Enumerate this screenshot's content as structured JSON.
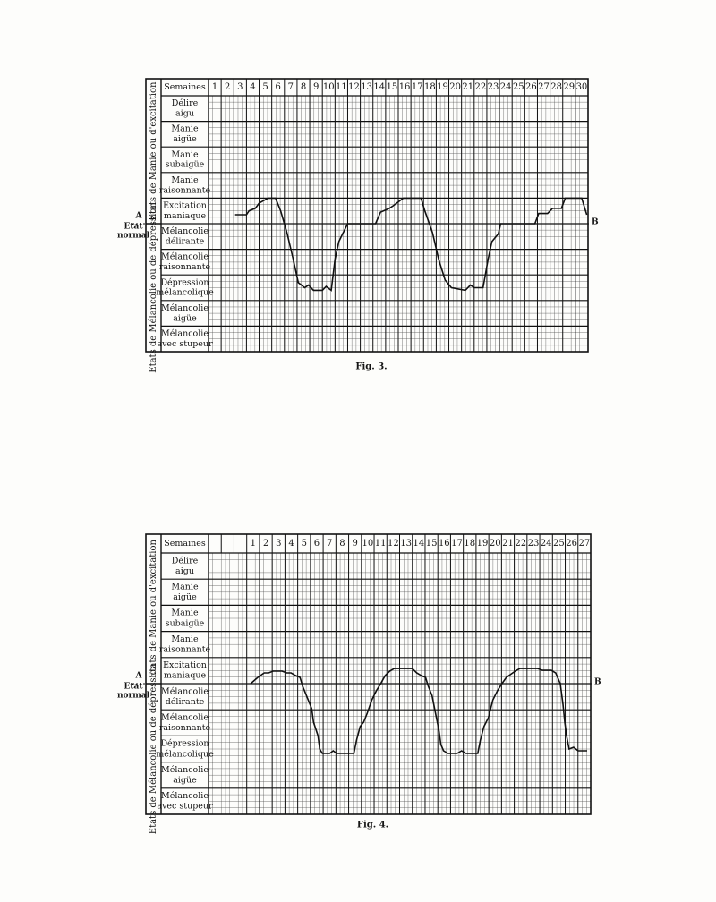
{
  "chart_data": [
    {
      "type": "line",
      "header_label": "Semaines",
      "weeks": [
        1,
        2,
        3,
        4,
        5,
        6,
        7,
        8,
        9,
        10,
        11,
        12,
        13,
        14,
        15,
        16,
        17,
        18,
        19,
        20,
        21,
        22,
        23,
        24,
        25,
        26,
        27,
        28,
        29,
        30
      ],
      "rows": [
        [
          "Délire",
          "aigu"
        ],
        [
          "Manie",
          "aigüe"
        ],
        [
          "Manie",
          "subaigüe"
        ],
        [
          "Manie",
          "raisonnante"
        ],
        [
          "Excitation",
          "maniaque"
        ],
        [
          "Mélancolie",
          "délirante"
        ],
        [
          "Mélancolie",
          "raisonnante"
        ],
        [
          "Dépression",
          "mélancolique"
        ],
        [
          "Mélancolie",
          "aigüe"
        ],
        [
          "Mélancolie",
          "avec stupeur"
        ]
      ],
      "group_labels": [
        "Etats de Manie ou d'excitation",
        "Etats de Mélancolie ou de dépression"
      ],
      "start_marker": "A",
      "baseline_label": [
        "Etat",
        "normal"
      ],
      "end_marker": "B",
      "caption": "Fig. 3.",
      "xlim": [
        0,
        30
      ],
      "ylim": [
        -5,
        5
      ],
      "color": "#111111",
      "x": [
        2.1,
        3.0,
        3.2,
        3.7,
        4.0,
        4.7,
        5.3,
        5.7,
        6.2,
        6.7,
        7.1,
        7.6,
        7.9,
        8.3,
        9.0,
        9.3,
        9.7,
        10.0,
        10.3,
        10.6,
        11.0,
        13.2,
        13.6,
        14.3,
        14.6,
        15.4,
        16.8,
        17.1,
        17.7,
        18.2,
        18.7,
        19.2,
        20.3,
        20.7,
        21.0,
        21.7,
        22.1,
        22.4,
        22.9,
        23.1,
        25.8,
        26.1,
        26.8,
        27.2,
        27.9,
        28.2,
        29.5,
        29.9
      ],
      "values": [
        0.35,
        0.35,
        0.5,
        0.6,
        0.8,
        1.0,
        1.0,
        0.5,
        -0.35,
        -1.4,
        -2.3,
        -2.5,
        -2.4,
        -2.6,
        -2.6,
        -2.45,
        -2.6,
        -1.4,
        -0.7,
        -0.4,
        0,
        0,
        0.45,
        0.6,
        0.7,
        1.0,
        1.0,
        0.5,
        -0.35,
        -1.4,
        -2.2,
        -2.5,
        -2.6,
        -2.4,
        -2.5,
        -2.5,
        -1.4,
        -0.7,
        -0.4,
        0,
        0,
        0.4,
        0.4,
        0.6,
        0.6,
        1.0,
        1.0,
        0.35
      ]
    },
    {
      "type": "line",
      "header_label": "Semaines",
      "weeks": [
        1,
        2,
        3,
        4,
        5,
        6,
        7,
        8,
        9,
        10,
        11,
        12,
        13,
        14,
        15,
        16,
        17,
        18,
        19,
        20,
        21,
        22,
        23,
        24,
        25,
        26,
        27
      ],
      "rows": [
        [
          "Délire",
          "aigu"
        ],
        [
          "Manie",
          "aigüe"
        ],
        [
          "Manie",
          "subaigüe"
        ],
        [
          "Manie",
          "raisonnante"
        ],
        [
          "Excitation",
          "maniaque"
        ],
        [
          "Mélancolie",
          "délirante"
        ],
        [
          "Mélancolie",
          "raisonnante"
        ],
        [
          "Dépression",
          "mélancolique"
        ],
        [
          "Mélancolie",
          "aigüe"
        ],
        [
          "Mélancolie",
          "avec stupeur"
        ]
      ],
      "group_labels": [
        "Etats de Manie ou d'excitation",
        "Etats de Mélancolie ou de dépression"
      ],
      "start_marker": "A",
      "baseline_label": [
        "Etat",
        "normal"
      ],
      "end_marker": "B",
      "caption": "Fig. 4.",
      "xlim": [
        -3,
        27
      ],
      "ylim": [
        -5,
        5
      ],
      "color": "#111111",
      "x": [
        0.31,
        0.87,
        1.37,
        1.72,
        2.07,
        2.77,
        3.13,
        3.48,
        3.83,
        4.18,
        4.39,
        4.68,
        5.1,
        5.24,
        5.59,
        5.73,
        5.94,
        6.51,
        6.79,
        7.07,
        8.41,
        8.62,
        8.9,
        9.18,
        9.46,
        9.82,
        10.17,
        10.52,
        10.87,
        11.23,
        11.58,
        12.99,
        13.34,
        13.69,
        14.04,
        14.25,
        14.54,
        14.82,
        15.1,
        15.24,
        15.45,
        15.8,
        16.51,
        16.86,
        17.21,
        18.13,
        18.34,
        18.62,
        18.97,
        19.32,
        19.68,
        20.03,
        20.38,
        21.08,
        21.44,
        22.85,
        23.2,
        23.9,
        24.25,
        24.61,
        24.82,
        24.96,
        25.1,
        25.31,
        25.66,
        26.01,
        26.72
      ],
      "values": [
        0,
        0.24,
        0.41,
        0.41,
        0.48,
        0.48,
        0.41,
        0.41,
        0.31,
        0.24,
        -0.1,
        -0.45,
        -0.96,
        -1.47,
        -1.99,
        -2.5,
        -2.67,
        -2.67,
        -2.57,
        -2.67,
        -2.67,
        -2.16,
        -1.64,
        -1.47,
        -1.13,
        -0.62,
        -0.27,
        0,
        0.31,
        0.48,
        0.58,
        0.58,
        0.41,
        0.31,
        0.24,
        -0.1,
        -0.45,
        -1.13,
        -1.82,
        -2.33,
        -2.57,
        -2.67,
        -2.67,
        -2.57,
        -2.67,
        -2.67,
        -2.16,
        -1.64,
        -1.3,
        -0.62,
        -0.27,
        0,
        0.24,
        0.48,
        0.58,
        0.58,
        0.51,
        0.51,
        0.41,
        0,
        -0.79,
        -1.47,
        -1.99,
        -2.5,
        -2.43,
        -2.57,
        -2.57
      ]
    }
  ]
}
